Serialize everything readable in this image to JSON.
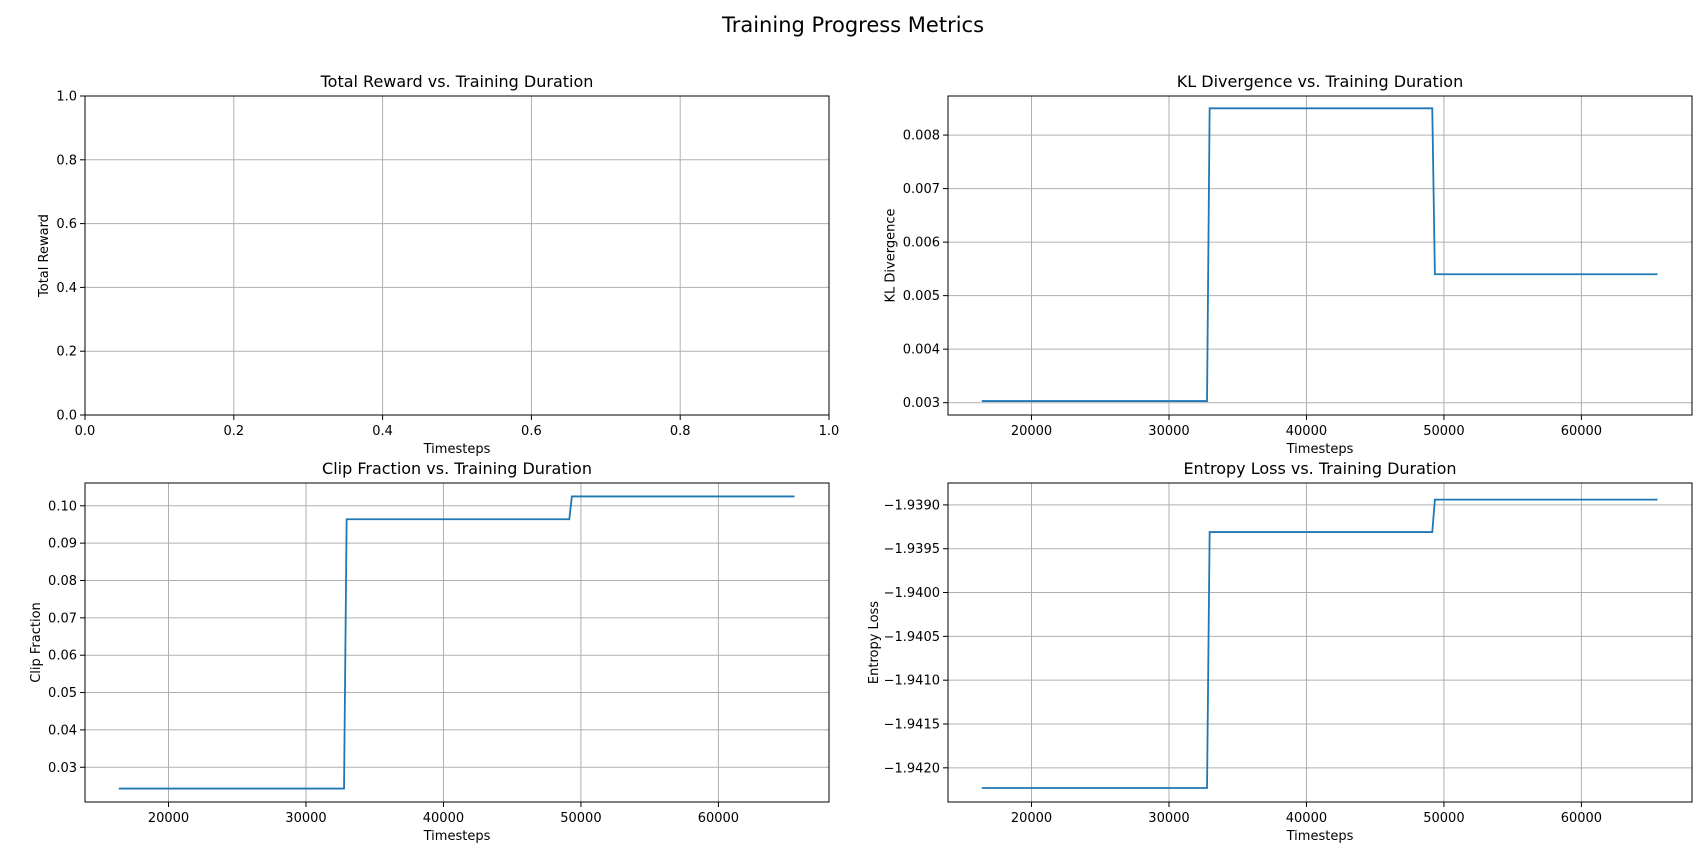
{
  "figure": {
    "title": "Training Progress Metrics"
  },
  "chart_data": [
    {
      "type": "line",
      "title": "Total Reward vs. Training Duration",
      "xlabel": "Timesteps",
      "ylabel": "Total Reward",
      "xlim": [
        0,
        1
      ],
      "ylim": [
        0,
        1
      ],
      "xticks": [
        0.0,
        0.2,
        0.4,
        0.6,
        0.8,
        1.0
      ],
      "yticks": [
        0.0,
        0.2,
        0.4,
        0.6,
        0.8,
        1.0
      ],
      "xtick_labels": [
        "0.0",
        "0.2",
        "0.4",
        "0.6",
        "0.8",
        "1.0"
      ],
      "ytick_labels": [
        "0.0",
        "0.2",
        "0.4",
        "0.6",
        "0.8",
        "1.0"
      ],
      "grid": true,
      "series": []
    },
    {
      "type": "line",
      "title": "KL Divergence vs. Training Duration",
      "xlabel": "Timesteps",
      "ylabel": "KL Divergence",
      "xlim": [
        13926,
        68045
      ],
      "ylim": [
        0.00277,
        0.00873
      ],
      "xticks": [
        20000,
        30000,
        40000,
        50000,
        60000
      ],
      "yticks": [
        0.003,
        0.004,
        0.005,
        0.006,
        0.007,
        0.008
      ],
      "xtick_labels": [
        "20000",
        "30000",
        "40000",
        "50000",
        "60000"
      ],
      "ytick_labels": [
        "0.003",
        "0.004",
        "0.005",
        "0.006",
        "0.007",
        "0.008"
      ],
      "grid": true,
      "series": [
        {
          "color": "#1f77b4",
          "x": [
            16384,
            32768,
            32958,
            49152,
            49342,
            65536
          ],
          "y": [
            0.00303,
            0.00303,
            0.0085,
            0.0085,
            0.0054,
            0.0054
          ]
        }
      ]
    },
    {
      "type": "line",
      "title": "Clip Fraction vs. Training Duration",
      "xlabel": "Timesteps",
      "ylabel": "Clip Fraction",
      "xlim": [
        13926,
        68045
      ],
      "ylim": [
        0.0207,
        0.1061
      ],
      "xticks": [
        20000,
        30000,
        40000,
        50000,
        60000
      ],
      "yticks": [
        0.03,
        0.04,
        0.05,
        0.06,
        0.07,
        0.08,
        0.09,
        0.1
      ],
      "xtick_labels": [
        "20000",
        "30000",
        "40000",
        "50000",
        "60000"
      ],
      "ytick_labels": [
        "0.03",
        "0.04",
        "0.05",
        "0.06",
        "0.07",
        "0.08",
        "0.09",
        "0.10"
      ],
      "grid": true,
      "series": [
        {
          "color": "#1f77b4",
          "x": [
            16384,
            32768,
            32958,
            49152,
            49342,
            65536
          ],
          "y": [
            0.0243,
            0.0243,
            0.0964,
            0.0964,
            0.1025,
            0.1025
          ]
        }
      ]
    },
    {
      "type": "line",
      "title": "Entropy Loss vs. Training Duration",
      "xlabel": "Timesteps",
      "ylabel": "Entropy Loss",
      "xlim": [
        13926,
        68045
      ],
      "ylim": [
        -1.94239,
        -1.93875
      ],
      "xticks": [
        20000,
        30000,
        40000,
        50000,
        60000
      ],
      "yticks": [
        -1.942,
        -1.9415,
        -1.941,
        -1.9405,
        -1.94,
        -1.9395,
        -1.939
      ],
      "xtick_labels": [
        "20000",
        "30000",
        "40000",
        "50000",
        "60000"
      ],
      "ytick_labels": [
        "−1.9420",
        "−1.9415",
        "−1.9410",
        "−1.9405",
        "−1.9400",
        "−1.9395",
        "−1.9390"
      ],
      "grid": true,
      "series": [
        {
          "color": "#1f77b4",
          "x": [
            16384,
            32768,
            32958,
            49152,
            49342,
            65536
          ],
          "y": [
            -1.94223,
            -1.94223,
            -1.93931,
            -1.93931,
            -1.93894,
            -1.93894
          ]
        }
      ]
    }
  ]
}
